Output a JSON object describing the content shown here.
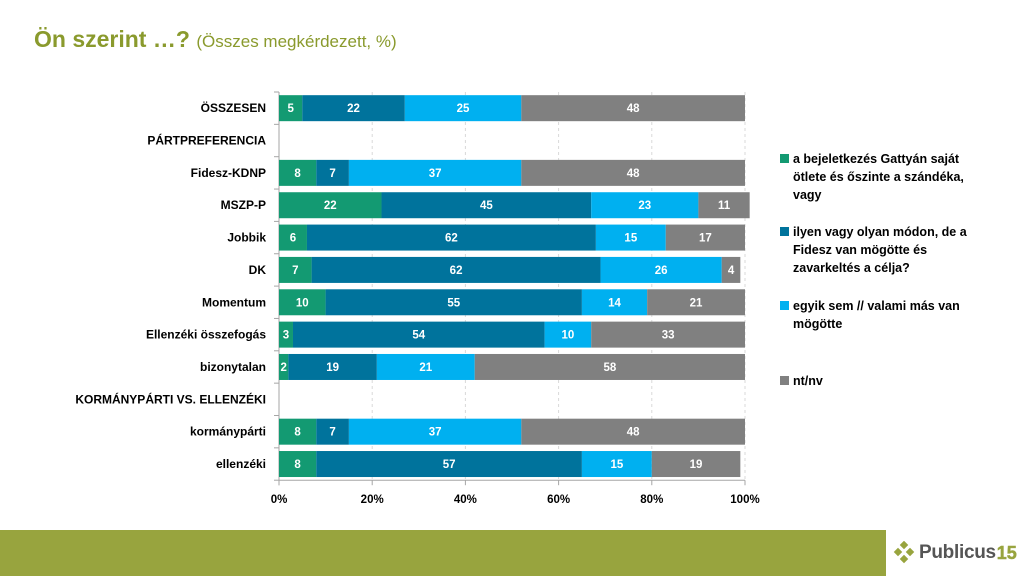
{
  "header": {
    "title": "Ön szerint …?",
    "subtitle": "(Összes megkérdezett, %)"
  },
  "chart_data": {
    "type": "bar",
    "orientation": "horizontal",
    "stacked": true,
    "title": "Ön szerint …?",
    "subtitle": "(Összes megkérdezett, %)",
    "xlabel": "",
    "ylabel": "",
    "xlim": [
      0,
      100
    ],
    "x_ticks": [
      "0%",
      "20%",
      "40%",
      "60%",
      "80%",
      "100%"
    ],
    "grid": "vertical-dashed",
    "legend_position": "right",
    "categories": [
      "ÖSSZESEN",
      "PÁRTPREFERENCIA",
      "Fidesz-KDNP",
      "MSZP-P",
      "Jobbik",
      "DK",
      "Momentum",
      "Ellenzéki összefogás",
      "bizonytalan",
      "KORMÁNYPÁRTI VS. ELLENZÉKI",
      "kormánypárti",
      "ellenzéki"
    ],
    "series": [
      {
        "name": "a bejeletkezés Gattyán saját ötlete és őszinte a szándéka, vagy",
        "color": "#139a72",
        "values": [
          5,
          null,
          8,
          22,
          6,
          7,
          10,
          3,
          2,
          null,
          8,
          8
        ]
      },
      {
        "name": "ilyen vagy olyan módon, de a Fidesz van mögötte és zavarkeltés a célja?",
        "color": "#00739c",
        "values": [
          22,
          null,
          7,
          45,
          62,
          62,
          55,
          54,
          19,
          null,
          7,
          57
        ]
      },
      {
        "name": "egyik sem // valami más van mögötte",
        "color": "#00b0f0",
        "values": [
          25,
          null,
          37,
          23,
          15,
          26,
          14,
          10,
          21,
          null,
          37,
          15
        ]
      },
      {
        "name": "nt/nv",
        "color": "#808080",
        "values": [
          48,
          null,
          48,
          11,
          17,
          4,
          21,
          33,
          58,
          null,
          48,
          19
        ]
      }
    ]
  },
  "legend": {
    "items": [
      {
        "label": "a bejeletkezés Gattyán saját ötlete és őszinte a szándéka, vagy",
        "color": "#139a72"
      },
      {
        "label": "ilyen vagy olyan módon, de a Fidesz van mögötte és zavarkeltés a célja?",
        "color": "#00739c"
      },
      {
        "label": "egyik sem // valami más van mögötte",
        "color": "#00b0f0"
      },
      {
        "label": "nt/nv",
        "color": "#808080"
      }
    ]
  },
  "footer": {
    "logo_word": "Publicus",
    "logo_number": "15",
    "bar_color": "#98a43e"
  }
}
